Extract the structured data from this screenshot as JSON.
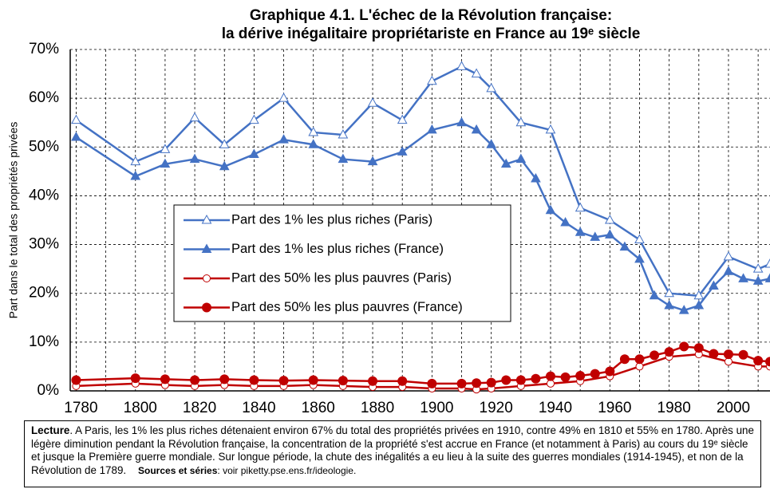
{
  "chart_data": {
    "type": "line",
    "title": [
      "Graphique 4.1. L'échec de la Révolution française:",
      "la dérive inégalitaire propriétariste en France au 19ᵉ siècle"
    ],
    "ylabel": "Part dans le total des propriétés privées",
    "xlim": [
      1778,
      2014
    ],
    "ylim": [
      0,
      70
    ],
    "xticks": [
      1780,
      1800,
      1820,
      1840,
      1860,
      1880,
      1900,
      1920,
      1940,
      1960,
      1980,
      2000
    ],
    "x_minor_grid": [
      1790,
      1810,
      1830,
      1850,
      1870,
      1890,
      1910,
      1930,
      1950,
      1970,
      1990,
      2010
    ],
    "yticks": [
      {
        "value": 0,
        "label": "0%"
      },
      {
        "value": 10,
        "label": "10%"
      },
      {
        "value": 20,
        "label": "20%"
      },
      {
        "value": 30,
        "label": "30%"
      },
      {
        "value": 40,
        "label": "40%"
      },
      {
        "value": 50,
        "label": "50%"
      },
      {
        "value": 60,
        "label": "60%"
      },
      {
        "value": 70,
        "label": "70%"
      }
    ],
    "grid": true,
    "legend": "center",
    "series": [
      {
        "name": "Part des 1% les plus riches (Paris)",
        "color": "#4472c4",
        "marker": "triangle",
        "filled": false,
        "x": [
          1780,
          1800,
          1810,
          1820,
          1830,
          1840,
          1850,
          1860,
          1870,
          1880,
          1890,
          1900,
          1910,
          1915,
          1920,
          1930,
          1940,
          1950,
          1960,
          1970,
          1980,
          1990,
          2000,
          2010,
          2014
        ],
        "values": [
          55.5,
          47,
          49.5,
          56,
          50.5,
          55.5,
          60,
          53,
          52.5,
          59,
          55.5,
          63.5,
          66.5,
          65,
          62,
          55,
          53.5,
          37.5,
          35,
          31,
          20,
          19.5,
          27.5,
          25,
          26
        ]
      },
      {
        "name": "Part des 1% les plus riches (France)",
        "color": "#4472c4",
        "marker": "triangle",
        "filled": true,
        "x": [
          1780,
          1800,
          1810,
          1820,
          1830,
          1840,
          1850,
          1860,
          1870,
          1880,
          1890,
          1900,
          1910,
          1915,
          1920,
          1925,
          1930,
          1935,
          1940,
          1945,
          1950,
          1955,
          1960,
          1965,
          1970,
          1975,
          1980,
          1985,
          1990,
          1995,
          2000,
          2005,
          2010,
          2014
        ],
        "values": [
          52,
          44,
          46.5,
          47.5,
          46,
          48.5,
          51.5,
          50.5,
          47.5,
          47,
          49,
          53.5,
          55,
          53.5,
          50.5,
          46.5,
          47.5,
          43.5,
          37,
          34.5,
          32.5,
          31.5,
          32,
          29.5,
          27,
          19.5,
          17.5,
          16.5,
          17.5,
          21.5,
          24.5,
          23,
          22.5,
          23
        ]
      },
      {
        "name": "Part des 50% les plus pauvres (Paris)",
        "color": "#c00000",
        "marker": "circle",
        "filled": false,
        "x": [
          1780,
          1800,
          1810,
          1820,
          1830,
          1840,
          1850,
          1860,
          1870,
          1880,
          1890,
          1900,
          1910,
          1915,
          1920,
          1930,
          1940,
          1950,
          1960,
          1970,
          1980,
          1990,
          2000,
          2010,
          2014
        ],
        "values": [
          1,
          1.5,
          1.2,
          1,
          1.2,
          1,
          1,
          1.2,
          1,
          0.8,
          0.8,
          0.5,
          0.5,
          0.3,
          0.5,
          1,
          1.5,
          2,
          3,
          5,
          7,
          7.5,
          6,
          5,
          5
        ]
      },
      {
        "name": "Part des 50% les plus pauvres (France)",
        "color": "#c00000",
        "marker": "circle",
        "filled": true,
        "x": [
          1780,
          1800,
          1810,
          1820,
          1830,
          1840,
          1850,
          1860,
          1870,
          1880,
          1890,
          1900,
          1910,
          1915,
          1920,
          1925,
          1930,
          1935,
          1940,
          1945,
          1950,
          1955,
          1960,
          1965,
          1970,
          1975,
          1980,
          1985,
          1990,
          1995,
          2000,
          2005,
          2010,
          2014
        ],
        "values": [
          2.2,
          2.6,
          2.4,
          2.2,
          2.4,
          2.2,
          2.1,
          2.2,
          2.1,
          2,
          2,
          1.5,
          1.5,
          1.6,
          1.7,
          2.2,
          2.2,
          2.5,
          3,
          2.8,
          3.1,
          3.5,
          4,
          6.5,
          6.5,
          7.3,
          8,
          9.1,
          8.8,
          7.6,
          7.5,
          7.4,
          6.2,
          6
        ]
      }
    ],
    "note": {
      "lead": "Lecture",
      "text": ". A Paris, les 1% les plus riches détenaient environ 67% du total des propriétés privées en 1910, contre 49% en 1810 et 55% en 1780. Après une légère diminution pendant la Révolution française, la concentration de la propriété s'est accrue en France (et notamment à Paris) au cours du 19ᵉ siècle et jusque la Première guerre mondiale. Sur longue période, la chute des inégalités a eu lieu à la suite des guerres mondiales (1914-1945), et non de la Révolution de 1789.",
      "sources_label": "Sources et séries",
      "sources": ": voir piketty.pse.ens.fr/ideologie."
    }
  }
}
